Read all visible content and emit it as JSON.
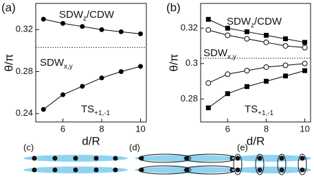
{
  "chart_data": [
    {
      "type": "line",
      "panel": "(a)",
      "xlabel": "d/R",
      "ylabel": "θ/π",
      "xlim": [
        4.6,
        10.3
      ],
      "ylim": [
        0.232,
        0.345
      ],
      "xticks": [
        6,
        8,
        10
      ],
      "yticks": [
        0.24,
        0.28,
        0.32
      ],
      "reference_line": 0.303,
      "x": [
        5,
        6,
        7,
        8,
        9,
        10
      ],
      "series": [
        {
          "color": "#000000",
          "marker": "circle",
          "values": [
            0.33,
            0.326,
            0.323,
            0.32,
            0.318,
            0.316
          ]
        },
        {
          "color": "#000000",
          "marker": "circle",
          "values": [
            0.244,
            0.258,
            0.266,
            0.274,
            0.28,
            0.285
          ]
        }
      ],
      "annotations": [
        {
          "text": "SDW",
          "sub": "z",
          "after": "/CDW"
        },
        {
          "text": "SDW",
          "sub": "x,y"
        },
        {
          "text": "TS",
          "sub": "+1,-1"
        }
      ]
    },
    {
      "type": "line",
      "panel": "(b)",
      "xlabel": "d/R",
      "ylabel": "θ/π",
      "xlim": [
        4.6,
        10.3
      ],
      "ylim": [
        0.267,
        0.334
      ],
      "xticks": [
        6,
        8,
        10
      ],
      "yticks": [
        0.28,
        0.3,
        0.32
      ],
      "reference_line": 0.303,
      "x": [
        5,
        6,
        7,
        8,
        9,
        10
      ],
      "series": [
        {
          "color": "#000000",
          "marker": "square",
          "values": [
            0.325,
            0.32,
            0.318,
            0.316,
            0.314,
            0.312
          ]
        },
        {
          "color": "#000000",
          "marker": "open-circle",
          "values": [
            0.319,
            0.316,
            0.314,
            0.312,
            0.31,
            0.309
          ]
        },
        {
          "color": "#000000",
          "marker": "open-circle",
          "values": [
            0.289,
            0.294,
            0.296,
            0.298,
            0.299,
            0.3
          ]
        },
        {
          "color": "#000000",
          "marker": "square",
          "values": [
            0.275,
            0.283,
            0.287,
            0.29,
            0.293,
            0.296
          ]
        }
      ],
      "annotations": [
        {
          "text": "SDW",
          "sub": "z",
          "after": "/CDW"
        },
        {
          "text": "SDW",
          "sub": "x,y"
        },
        {
          "text": "TS",
          "sub": "+1,-1"
        }
      ]
    }
  ],
  "diagrams": [
    {
      "label": "(c)"
    },
    {
      "label": "(d)"
    },
    {
      "label": "(e)"
    }
  ]
}
